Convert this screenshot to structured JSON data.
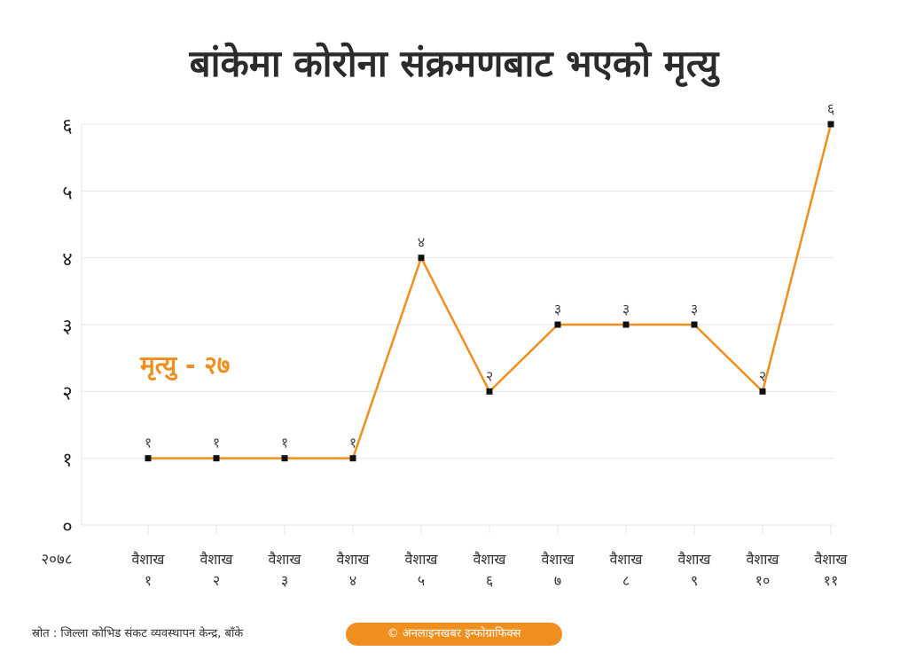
{
  "title": "बांकेमा कोरोना संक्रमणबाट भएको मृत्यु",
  "annotation": "मृत्यु - २७",
  "source": "स्रोत : जिल्ला कोभिड संकट व्यवस्थापन केन्द्र, बाँके",
  "credit": "© अनलाइनखबर इन्फोग्राफिक्स",
  "colors": {
    "line": "#f18f1e",
    "marker": "#111111",
    "grid": "#e6e6e6",
    "text": "#333333"
  },
  "chart_data": {
    "type": "line",
    "year_label": "२०७८",
    "categories": [
      [
        "वैशाख",
        "१"
      ],
      [
        "वैशाख",
        "२"
      ],
      [
        "वैशाख",
        "३"
      ],
      [
        "वैशाख",
        "४"
      ],
      [
        "वैशाख",
        "५"
      ],
      [
        "वैशाख",
        "६"
      ],
      [
        "वैशाख",
        "७"
      ],
      [
        "वैशाख",
        "८"
      ],
      [
        "वैशाख",
        "९"
      ],
      [
        "वैशाख",
        "१०"
      ],
      [
        "वैशाख",
        "११"
      ]
    ],
    "values": [
      1,
      1,
      1,
      1,
      4,
      2,
      3,
      3,
      3,
      2,
      6
    ],
    "data_labels": [
      "१",
      "१",
      "१",
      "१",
      "४",
      "२",
      "३",
      "३",
      "३",
      "२",
      "६"
    ],
    "y_ticks": [
      0,
      1,
      2,
      3,
      4,
      5,
      6
    ],
    "y_tick_labels": [
      "०",
      "१",
      "२",
      "३",
      "४",
      "५",
      "६"
    ],
    "ylim": [
      0,
      6
    ],
    "grid": true
  }
}
